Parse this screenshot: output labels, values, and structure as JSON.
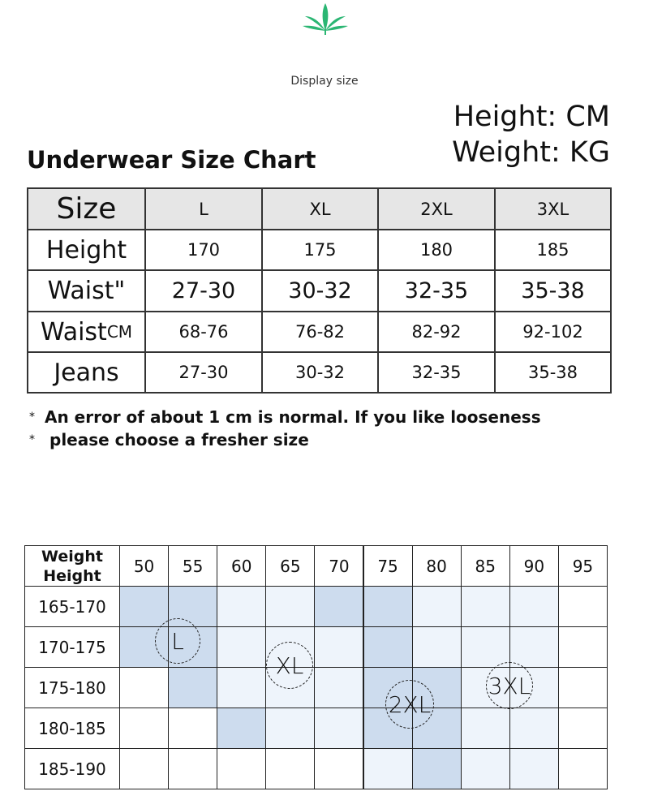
{
  "caption": "Display size",
  "units": [
    "Height: CM",
    "Weight: KG"
  ],
  "title": "Underwear Size Chart",
  "size_table": {
    "header": [
      "Size",
      "L",
      "XL",
      "2XL",
      "3XL"
    ],
    "rows": [
      {
        "label": "Height",
        "cells": [
          "170",
          "175",
          "180",
          "185"
        ]
      },
      {
        "label": "Waist\"",
        "cells": [
          "27-30",
          "30-32",
          "32-35",
          "35-38"
        ]
      },
      {
        "label": "Waist",
        "unit": "CM",
        "cells": [
          "68-76",
          "76-82",
          "82-92",
          "92-102"
        ]
      },
      {
        "label": "Jeans",
        "cells": [
          "27-30",
          "30-32",
          "32-35",
          "35-38"
        ]
      }
    ]
  },
  "notes": [
    {
      "marker": "*",
      "text": "An error of about 1 cm is normal. If you like looseness"
    },
    {
      "marker": "*",
      "text": "please choose a fresher size"
    }
  ],
  "weight_chart": {
    "corner": [
      "Weight",
      "Height"
    ],
    "weights": [
      "50",
      "55",
      "60",
      "65",
      "70",
      "75",
      "80",
      "85",
      "90",
      "95"
    ],
    "heights": [
      "165-170",
      "170-175",
      "175-180",
      "180-185",
      "185-190"
    ],
    "sizes": [
      "L",
      "XL",
      "2XL",
      "3XL"
    ]
  }
}
